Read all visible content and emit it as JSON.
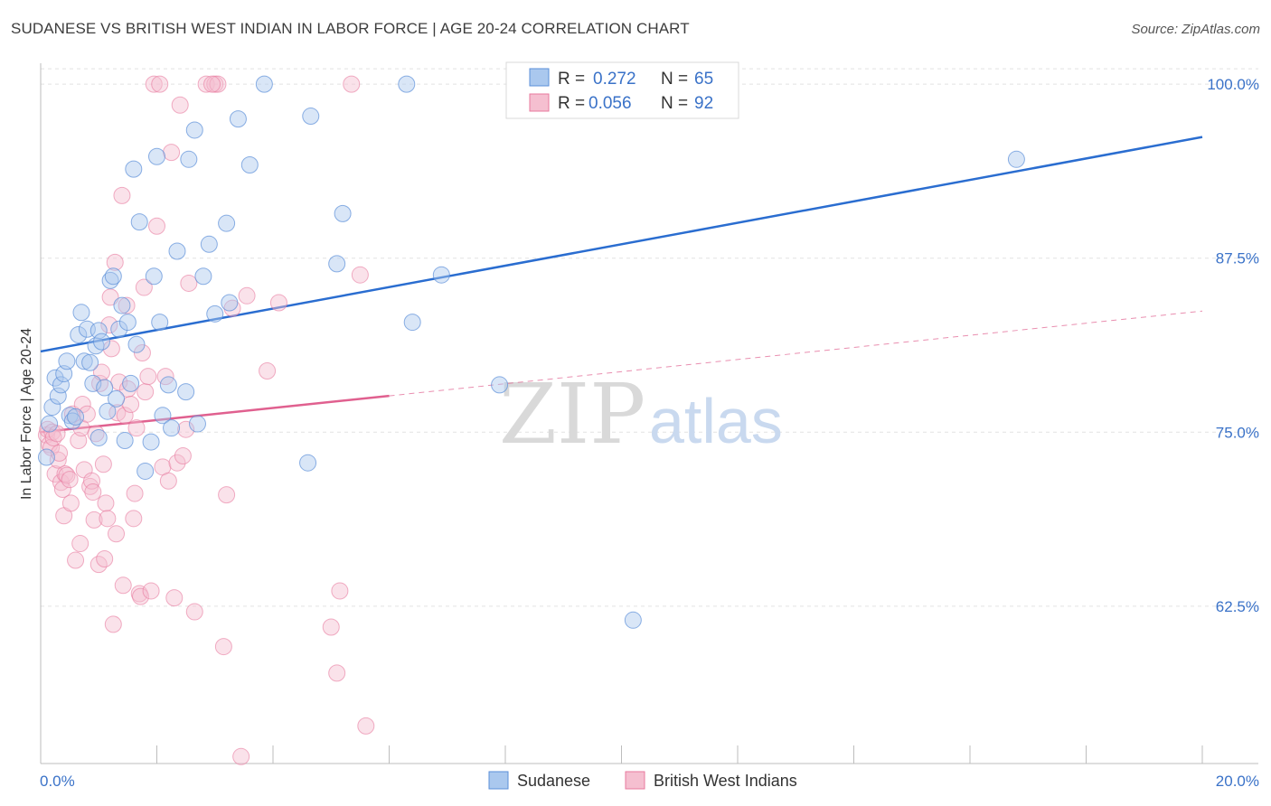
{
  "title": "SUDANESE VS BRITISH WEST INDIAN IN LABOR FORCE | AGE 20-24 CORRELATION CHART",
  "source": "Source: ZipAtlas.com",
  "watermark": {
    "zip": "ZIP",
    "atlas": "atlas"
  },
  "colors": {
    "sudanese": "#5b8fd8",
    "sudanese_fill": "#aac8ee",
    "sudanese_line": "#2a6dd0",
    "bwi": "#e8799e",
    "bwi_fill": "#f5bfd0",
    "bwi_line": "#e0608f",
    "tick": "#3a72c8",
    "grid": "#e2e2e2"
  },
  "legend": {
    "sudanese": {
      "r_label": "R =",
      "r_value": "0.272",
      "n_label": "N =",
      "n_value": "65"
    },
    "bwi": {
      "r_label": "R =",
      "r_value": "0.056",
      "n_label": "N =",
      "n_value": "92"
    }
  },
  "bottom_legend": {
    "sudanese": "Sudanese",
    "bwi": "British West Indians"
  },
  "chart_data": {
    "type": "scatter",
    "title": "SUDANESE VS BRITISH WEST INDIAN IN LABOR FORCE | AGE 20-24 CORRELATION CHART",
    "xlabel": "",
    "ylabel": "In Labor Force | Age 20-24",
    "xlim": [
      0,
      20
    ],
    "ylim": [
      51.2,
      101.5
    ],
    "x_tick_labels": [
      {
        "value": 0,
        "label": "0.0%"
      },
      {
        "value": 20,
        "label": "20.0%"
      }
    ],
    "x_minor_ticks": [
      2,
      4,
      6,
      8,
      10,
      12,
      14,
      16,
      18,
      20
    ],
    "y_ticks": [
      {
        "value": 62.5,
        "label": "62.5%"
      },
      {
        "value": 75.0,
        "label": "75.0%"
      },
      {
        "value": 87.5,
        "label": "87.5%"
      },
      {
        "value": 100.0,
        "label": "100.0%"
      }
    ],
    "grid": true,
    "series": [
      {
        "name": "Sudanese",
        "R": 0.272,
        "N": 65,
        "trend": {
          "x0": 0,
          "y0": 80.8,
          "x1": 20,
          "y1": 96.2,
          "solid_to": 20
        },
        "points": [
          [
            0.1,
            73.2
          ],
          [
            0.2,
            76.8
          ],
          [
            0.25,
            78.9
          ],
          [
            0.3,
            77.6
          ],
          [
            0.35,
            78.4
          ],
          [
            0.4,
            79.2
          ],
          [
            0.45,
            80.1
          ],
          [
            0.5,
            76.2
          ],
          [
            0.55,
            75.8
          ],
          [
            0.65,
            82.0
          ],
          [
            0.7,
            83.6
          ],
          [
            0.75,
            80.1
          ],
          [
            0.8,
            82.4
          ],
          [
            0.85,
            80.0
          ],
          [
            0.9,
            78.5
          ],
          [
            0.95,
            81.2
          ],
          [
            1.0,
            82.3
          ],
          [
            1.05,
            81.5
          ],
          [
            1.1,
            78.2
          ],
          [
            1.15,
            76.5
          ],
          [
            1.2,
            85.9
          ],
          [
            1.25,
            86.2
          ],
          [
            1.3,
            77.4
          ],
          [
            1.35,
            82.4
          ],
          [
            1.4,
            84.1
          ],
          [
            1.45,
            74.4
          ],
          [
            1.5,
            82.9
          ],
          [
            1.55,
            78.5
          ],
          [
            1.6,
            93.9
          ],
          [
            1.65,
            81.3
          ],
          [
            1.7,
            90.1
          ],
          [
            1.8,
            72.2
          ],
          [
            1.9,
            74.3
          ],
          [
            1.95,
            86.2
          ],
          [
            2.0,
            94.8
          ],
          [
            2.05,
            82.9
          ],
          [
            2.1,
            76.2
          ],
          [
            2.2,
            78.4
          ],
          [
            2.25,
            75.3
          ],
          [
            2.35,
            88.0
          ],
          [
            2.5,
            77.9
          ],
          [
            2.55,
            94.6
          ],
          [
            2.65,
            96.7
          ],
          [
            2.7,
            75.6
          ],
          [
            2.8,
            86.2
          ],
          [
            2.9,
            88.5
          ],
          [
            3.0,
            83.5
          ],
          [
            3.2,
            90.0
          ],
          [
            3.25,
            84.3
          ],
          [
            3.4,
            97.5
          ],
          [
            3.6,
            94.2
          ],
          [
            3.85,
            100.0
          ],
          [
            4.6,
            72.8
          ],
          [
            4.65,
            97.7
          ],
          [
            5.1,
            87.1
          ],
          [
            5.2,
            90.7
          ],
          [
            6.3,
            100.0
          ],
          [
            6.4,
            82.9
          ],
          [
            6.9,
            86.3
          ],
          [
            7.9,
            78.4
          ],
          [
            10.2,
            61.5
          ],
          [
            16.8,
            94.6
          ],
          [
            0.15,
            75.6
          ],
          [
            1.0,
            74.6
          ],
          [
            0.6,
            76.1
          ]
        ]
      },
      {
        "name": "British West Indians",
        "R": 0.056,
        "N": 92,
        "trend": {
          "x0": 0,
          "y0": 75.0,
          "x1": 20,
          "y1": 83.7,
          "solid_to": 6.0
        },
        "points": [
          [
            0.1,
            74.8
          ],
          [
            0.12,
            75.2
          ],
          [
            0.15,
            74.1
          ],
          [
            0.18,
            73.9
          ],
          [
            0.2,
            75.0
          ],
          [
            0.22,
            74.6
          ],
          [
            0.25,
            72.0
          ],
          [
            0.28,
            74.9
          ],
          [
            0.3,
            73.0
          ],
          [
            0.32,
            73.5
          ],
          [
            0.35,
            71.4
          ],
          [
            0.38,
            70.9
          ],
          [
            0.4,
            69.0
          ],
          [
            0.42,
            72.0
          ],
          [
            0.45,
            71.9
          ],
          [
            0.5,
            71.6
          ],
          [
            0.55,
            76.3
          ],
          [
            0.6,
            65.8
          ],
          [
            0.65,
            74.4
          ],
          [
            0.7,
            75.3
          ],
          [
            0.72,
            77.0
          ],
          [
            0.75,
            72.3
          ],
          [
            0.8,
            76.3
          ],
          [
            0.85,
            71.1
          ],
          [
            0.88,
            71.5
          ],
          [
            0.9,
            70.7
          ],
          [
            0.92,
            68.7
          ],
          [
            0.95,
            74.9
          ],
          [
            1.0,
            65.5
          ],
          [
            1.02,
            78.5
          ],
          [
            1.05,
            79.3
          ],
          [
            1.1,
            65.9
          ],
          [
            1.12,
            69.9
          ],
          [
            1.15,
            68.8
          ],
          [
            1.18,
            82.7
          ],
          [
            1.2,
            84.7
          ],
          [
            1.22,
            81.0
          ],
          [
            1.25,
            61.2
          ],
          [
            1.28,
            87.2
          ],
          [
            1.3,
            67.7
          ],
          [
            1.32,
            76.4
          ],
          [
            1.35,
            78.6
          ],
          [
            1.4,
            92.0
          ],
          [
            1.42,
            64.0
          ],
          [
            1.45,
            76.2
          ],
          [
            1.48,
            84.1
          ],
          [
            1.5,
            78.1
          ],
          [
            1.55,
            77.0
          ],
          [
            1.6,
            68.8
          ],
          [
            1.62,
            70.6
          ],
          [
            1.65,
            75.3
          ],
          [
            1.7,
            63.4
          ],
          [
            1.72,
            63.2
          ],
          [
            1.75,
            80.7
          ],
          [
            1.78,
            85.4
          ],
          [
            1.8,
            77.9
          ],
          [
            1.85,
            79.0
          ],
          [
            1.9,
            63.6
          ],
          [
            1.95,
            100.0
          ],
          [
            2.0,
            89.8
          ],
          [
            2.05,
            100.0
          ],
          [
            2.1,
            72.5
          ],
          [
            2.15,
            79.0
          ],
          [
            2.2,
            71.5
          ],
          [
            2.25,
            95.1
          ],
          [
            2.3,
            63.1
          ],
          [
            2.35,
            72.8
          ],
          [
            2.4,
            98.5
          ],
          [
            2.45,
            73.3
          ],
          [
            2.5,
            75.2
          ],
          [
            2.55,
            85.7
          ],
          [
            2.65,
            62.1
          ],
          [
            2.85,
            100.0
          ],
          [
            3.0,
            100.0
          ],
          [
            3.05,
            100.0
          ],
          [
            3.15,
            59.6
          ],
          [
            3.2,
            70.5
          ],
          [
            3.3,
            83.9
          ],
          [
            3.45,
            51.7
          ],
          [
            3.55,
            84.8
          ],
          [
            3.9,
            79.4
          ],
          [
            4.1,
            84.3
          ],
          [
            5.0,
            61.0
          ],
          [
            5.1,
            57.7
          ],
          [
            5.15,
            63.6
          ],
          [
            5.5,
            86.3
          ],
          [
            5.6,
            53.9
          ],
          [
            5.35,
            100.0
          ],
          [
            2.95,
            100.0
          ],
          [
            0.52,
            69.9
          ],
          [
            1.08,
            72.7
          ],
          [
            0.68,
            67.0
          ]
        ]
      }
    ]
  }
}
